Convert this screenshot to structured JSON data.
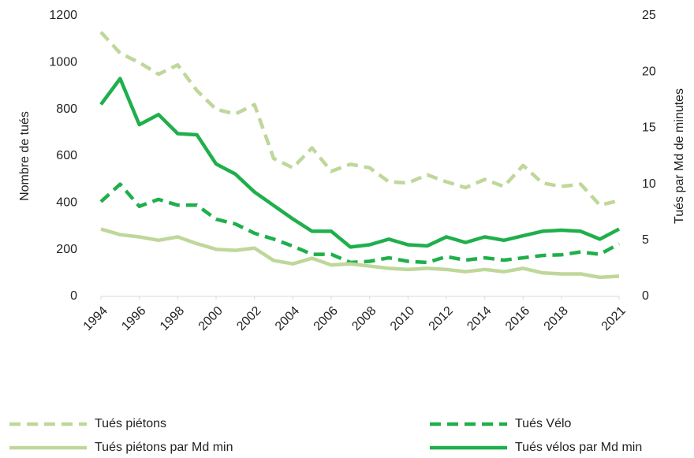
{
  "chart_data": {
    "type": "line",
    "ylabel": "Nombre de tués",
    "y2label": "Tués par Md de minutes",
    "x": [
      1994,
      1995,
      1996,
      1997,
      1998,
      1999,
      2000,
      2001,
      2002,
      2003,
      2004,
      2005,
      2006,
      2007,
      2008,
      2009,
      2010,
      2011,
      2012,
      2013,
      2014,
      2015,
      2016,
      2017,
      2018,
      2019,
      2020,
      2021
    ],
    "xlim": [
      1994,
      2021
    ],
    "xticks": [
      1994,
      1996,
      1998,
      2000,
      2002,
      2004,
      2006,
      2008,
      2010,
      2012,
      2014,
      2016,
      2018,
      2021
    ],
    "ylim": [
      0,
      1200
    ],
    "yticks": [
      0,
      200,
      400,
      600,
      800,
      1000,
      1200
    ],
    "y2lim": [
      0,
      25
    ],
    "y2ticks": [
      0,
      5,
      10,
      15,
      20,
      25
    ],
    "grid": false,
    "legend": "bottom",
    "series": [
      {
        "name": "Tués piétons",
        "color": "#bfd79a",
        "dash": true,
        "values": [
          1130,
          1040,
          1000,
          950,
          990,
          880,
          800,
          780,
          820,
          590,
          550,
          635,
          535,
          565,
          550,
          490,
          485,
          520,
          490,
          465,
          500,
          470,
          560,
          485,
          470,
          480,
          390,
          410
        ]
      },
      {
        "name": "Tués Vélo",
        "color": "#1faf4b",
        "dash": true,
        "values": [
          405,
          480,
          385,
          415,
          390,
          390,
          330,
          310,
          270,
          245,
          215,
          180,
          180,
          145,
          150,
          165,
          150,
          145,
          170,
          155,
          165,
          155,
          165,
          175,
          178,
          190,
          180,
          225
        ]
      },
      {
        "name": "Tués piétons par Md min",
        "color": "#bfd79a",
        "dash": false,
        "axis": "y2",
        "values": [
          6.0,
          5.5,
          5.3,
          5.0,
          5.3,
          4.7,
          4.2,
          4.1,
          4.3,
          3.2,
          2.9,
          3.4,
          2.8,
          2.9,
          2.7,
          2.5,
          2.4,
          2.5,
          2.4,
          2.2,
          2.4,
          2.2,
          2.5,
          2.1,
          2.0,
          2.0,
          1.7,
          1.8
        ]
      },
      {
        "name": "Tués vélos par Md min",
        "color": "#1faf4b",
        "dash": false,
        "axis": "y2",
        "values": [
          17.1,
          19.4,
          15.3,
          16.2,
          14.5,
          14.4,
          11.8,
          10.9,
          9.3,
          8.1,
          6.9,
          5.8,
          5.8,
          4.4,
          4.6,
          5.1,
          4.6,
          4.5,
          5.3,
          4.8,
          5.3,
          5.0,
          5.4,
          5.8,
          5.9,
          5.8,
          5.1,
          6.0
        ]
      }
    ]
  }
}
